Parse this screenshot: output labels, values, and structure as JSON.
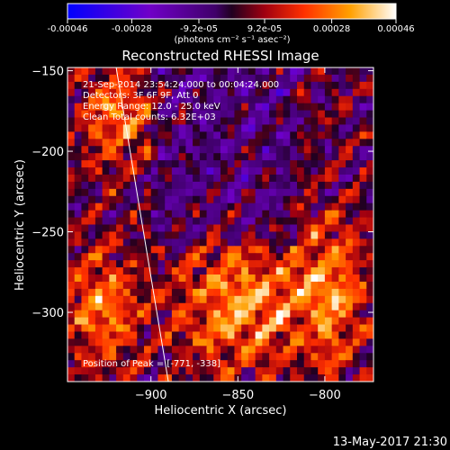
{
  "chart_data": {
    "type": "heatmap",
    "title": "Reconstructed RHESSI Image",
    "xlabel": "Heliocentric X (arcsec)",
    "ylabel": "Heliocentric Y (arcsec)",
    "xlim": [
      -948,
      -772
    ],
    "ylim": [
      -343,
      -148
    ],
    "x_ticks": [
      -900,
      -850,
      -800
    ],
    "y_ticks": [
      -150,
      -200,
      -250,
      -300
    ],
    "colorbar": {
      "min": -0.00046,
      "max": 0.00046,
      "tick_values": [
        -0.00046,
        -0.00028,
        -9.2e-05,
        9.2e-05,
        0.00028,
        0.00046
      ],
      "tick_labels": [
        "-0.00046",
        "-0.00028",
        "-9.2e-05",
        "9.2e-05",
        "0.00028",
        "0.00046"
      ],
      "unit_label": "(photons cm⁻² s⁻¹ asec⁻²)"
    },
    "annotations": [
      "21-Sep-2014 23:54:24.000 to 00:04:24.000",
      "Detectors: 3F 6F 9F, Att 0",
      "Energy Range: 12.0 - 25.0 keV",
      "Clean    Total counts: 6.32E+03"
    ],
    "peak_label": "Position of Peak = [-771, -338]",
    "limb_line": {
      "x": [
        -920,
        -890
      ],
      "y": [
        -148,
        -343
      ]
    },
    "grid": false
  },
  "footer": {
    "timestamp": "13-May-2017 21:30"
  }
}
